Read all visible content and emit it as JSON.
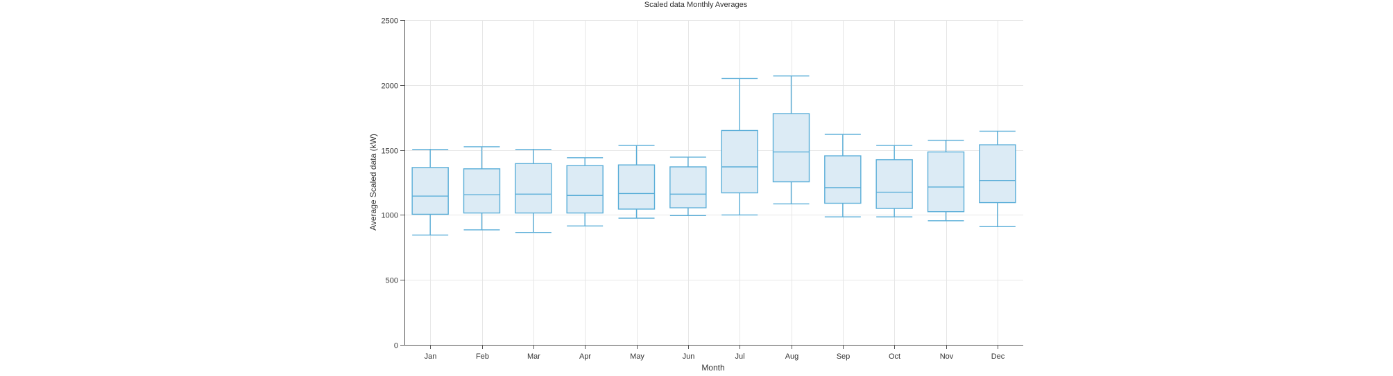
{
  "chart_data": {
    "type": "boxplot",
    "title": "Scaled data Monthly Averages",
    "xlabel": "Month",
    "ylabel": "Average Scaled data (kW)",
    "ylim": [
      0,
      2500
    ],
    "yticks": [
      0,
      500,
      1000,
      1500,
      2000,
      2500
    ],
    "grid": true,
    "legend": "none",
    "colors": {
      "box_fill": "#dcebf5",
      "box_stroke": "#5aaed8",
      "grid": "#e6e6e6",
      "axis": "#555555"
    },
    "categories": [
      "Jan",
      "Feb",
      "Mar",
      "Apr",
      "May",
      "Jun",
      "Jul",
      "Aug",
      "Sep",
      "Oct",
      "Nov",
      "Dec"
    ],
    "boxes": [
      {
        "min": 845,
        "q1": 1005,
        "median": 1145,
        "q3": 1365,
        "max": 1505
      },
      {
        "min": 885,
        "q1": 1015,
        "median": 1155,
        "q3": 1355,
        "max": 1525
      },
      {
        "min": 865,
        "q1": 1015,
        "median": 1160,
        "q3": 1395,
        "max": 1505
      },
      {
        "min": 915,
        "q1": 1015,
        "median": 1150,
        "q3": 1380,
        "max": 1440
      },
      {
        "min": 975,
        "q1": 1045,
        "median": 1165,
        "q3": 1385,
        "max": 1535
      },
      {
        "min": 995,
        "q1": 1055,
        "median": 1160,
        "q3": 1370,
        "max": 1445
      },
      {
        "min": 1000,
        "q1": 1170,
        "median": 1370,
        "q3": 1650,
        "max": 2050
      },
      {
        "min": 1085,
        "q1": 1255,
        "median": 1485,
        "q3": 1780,
        "max": 2070
      },
      {
        "min": 985,
        "q1": 1090,
        "median": 1210,
        "q3": 1455,
        "max": 1620
      },
      {
        "min": 985,
        "q1": 1050,
        "median": 1175,
        "q3": 1425,
        "max": 1535
      },
      {
        "min": 955,
        "q1": 1025,
        "median": 1215,
        "q3": 1485,
        "max": 1575
      },
      {
        "min": 910,
        "q1": 1095,
        "median": 1265,
        "q3": 1540,
        "max": 1645
      }
    ]
  }
}
